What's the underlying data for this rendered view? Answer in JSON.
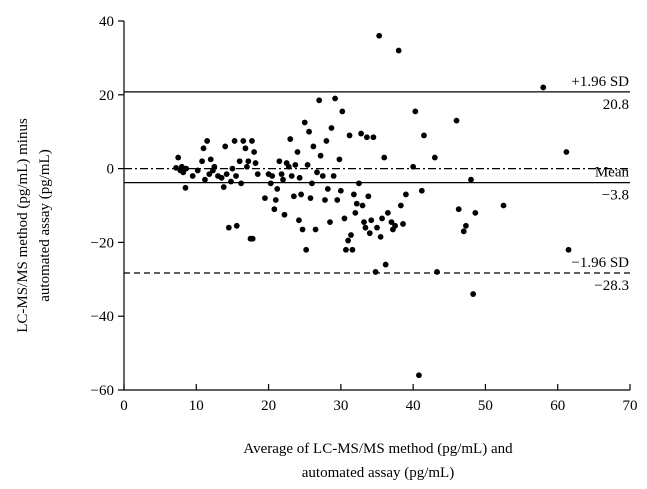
{
  "chart_data": {
    "type": "scatter",
    "xlabel_lines": [
      "Average of LC-MS/MS method (pg/mL) and",
      "automated assay (pg/mL)"
    ],
    "ylabel_lines": [
      "LC-MS/MS method (pg/mL) minus",
      "automated assay (pg/mL)"
    ],
    "xlim": [
      0,
      70
    ],
    "ylim": [
      -60,
      40
    ],
    "xticks": [
      0,
      10,
      20,
      30,
      40,
      50,
      60,
      70
    ],
    "yticks": [
      -60,
      -40,
      -20,
      0,
      20,
      40
    ],
    "grid": false,
    "reference_lines": [
      {
        "name": "upper-sd",
        "y": 20.8,
        "style": "solid",
        "label_top": "+1.96 SD",
        "label_bottom": "20.8"
      },
      {
        "name": "zero",
        "y": 0,
        "style": "dashdot"
      },
      {
        "name": "mean",
        "y": -3.8,
        "style": "solid",
        "label_top": "Mean",
        "label_bottom": "−3.8"
      },
      {
        "name": "lower-sd",
        "y": -28.3,
        "style": "dashed",
        "label_top": "−1.96 SD",
        "label_bottom": "−28.3"
      }
    ],
    "points": [
      [
        7.2,
        0.2
      ],
      [
        7.5,
        3.0
      ],
      [
        7.8,
        -0.5
      ],
      [
        8.0,
        0.5
      ],
      [
        8.2,
        -1.0
      ],
      [
        8.5,
        -5.2
      ],
      [
        8.6,
        0.0
      ],
      [
        9.5,
        -2.0
      ],
      [
        10.2,
        -0.5
      ],
      [
        10.8,
        2.0
      ],
      [
        11.0,
        5.5
      ],
      [
        11.2,
        -3.0
      ],
      [
        11.5,
        7.5
      ],
      [
        11.8,
        -1.5
      ],
      [
        12.0,
        2.5
      ],
      [
        12.3,
        -0.5
      ],
      [
        12.5,
        0.5
      ],
      [
        13.0,
        -2.0
      ],
      [
        13.5,
        -2.5
      ],
      [
        13.8,
        -5.0
      ],
      [
        14.0,
        6.0
      ],
      [
        14.2,
        -1.5
      ],
      [
        14.5,
        -16.0
      ],
      [
        14.8,
        -3.5
      ],
      [
        15.0,
        0.0
      ],
      [
        15.3,
        7.5
      ],
      [
        15.5,
        -2.0
      ],
      [
        15.6,
        -15.5
      ],
      [
        16.0,
        2.0
      ],
      [
        16.2,
        -4.0
      ],
      [
        16.5,
        7.5
      ],
      [
        16.8,
        5.5
      ],
      [
        17.0,
        0.5
      ],
      [
        17.2,
        2.0
      ],
      [
        17.5,
        -19.0
      ],
      [
        17.7,
        7.5
      ],
      [
        17.8,
        -19.0
      ],
      [
        18.0,
        4.5
      ],
      [
        18.2,
        1.5
      ],
      [
        18.5,
        -1.5
      ],
      [
        19.5,
        -8.0
      ],
      [
        20.0,
        -1.5
      ],
      [
        20.3,
        -4.0
      ],
      [
        20.5,
        -2.0
      ],
      [
        20.8,
        -11.0
      ],
      [
        21.0,
        -8.5
      ],
      [
        21.2,
        -5.5
      ],
      [
        21.5,
        2.0
      ],
      [
        21.8,
        -1.5
      ],
      [
        22.0,
        -3.0
      ],
      [
        22.2,
        -12.5
      ],
      [
        22.5,
        1.5
      ],
      [
        22.8,
        0.5
      ],
      [
        23.0,
        8.0
      ],
      [
        23.2,
        -2.0
      ],
      [
        23.5,
        -7.5
      ],
      [
        23.7,
        1.0
      ],
      [
        24.0,
        4.5
      ],
      [
        24.2,
        -14.0
      ],
      [
        24.3,
        -2.5
      ],
      [
        24.5,
        -7.0
      ],
      [
        24.7,
        -16.5
      ],
      [
        25.0,
        12.5
      ],
      [
        25.2,
        -22.0
      ],
      [
        25.4,
        1.0
      ],
      [
        25.6,
        10.0
      ],
      [
        25.8,
        -8.0
      ],
      [
        26.0,
        -4.0
      ],
      [
        26.2,
        6.0
      ],
      [
        26.5,
        -16.5
      ],
      [
        26.7,
        -1.0
      ],
      [
        27.0,
        18.5
      ],
      [
        27.2,
        3.5
      ],
      [
        27.5,
        -2.0
      ],
      [
        27.8,
        -8.5
      ],
      [
        28.0,
        7.5
      ],
      [
        28.2,
        -5.5
      ],
      [
        28.5,
        -14.5
      ],
      [
        28.7,
        11.0
      ],
      [
        29.0,
        -2.0
      ],
      [
        29.2,
        19.0
      ],
      [
        29.5,
        -8.5
      ],
      [
        29.8,
        2.5
      ],
      [
        30.0,
        -6.0
      ],
      [
        30.2,
        15.5
      ],
      [
        30.5,
        -13.5
      ],
      [
        30.7,
        -22.0
      ],
      [
        31.0,
        -19.5
      ],
      [
        31.2,
        9.0
      ],
      [
        31.4,
        -18.0
      ],
      [
        31.6,
        -22.0
      ],
      [
        31.8,
        -7.0
      ],
      [
        32.0,
        -12.0
      ],
      [
        32.2,
        -9.5
      ],
      [
        32.5,
        -4.0
      ],
      [
        32.8,
        9.5
      ],
      [
        33.0,
        -10.0
      ],
      [
        33.2,
        -14.5
      ],
      [
        33.4,
        -16.0
      ],
      [
        33.6,
        8.5
      ],
      [
        33.8,
        -7.5
      ],
      [
        34.0,
        -17.5
      ],
      [
        34.2,
        -14.0
      ],
      [
        34.5,
        8.5
      ],
      [
        34.8,
        -28.0
      ],
      [
        35.0,
        -16.0
      ],
      [
        35.3,
        36.0
      ],
      [
        35.5,
        -18.5
      ],
      [
        35.7,
        -13.5
      ],
      [
        36.0,
        3.0
      ],
      [
        36.2,
        -26.0
      ],
      [
        36.5,
        -12.0
      ],
      [
        37.0,
        -14.5
      ],
      [
        37.2,
        -16.5
      ],
      [
        37.5,
        -15.5
      ],
      [
        38.0,
        32.0
      ],
      [
        38.3,
        -10.0
      ],
      [
        38.6,
        -15.0
      ],
      [
        39.0,
        -7.0
      ],
      [
        40.0,
        0.5
      ],
      [
        40.3,
        15.5
      ],
      [
        40.8,
        -56.0
      ],
      [
        41.2,
        -6.0
      ],
      [
        41.5,
        9.0
      ],
      [
        43.0,
        3.0
      ],
      [
        43.3,
        -28.0
      ],
      [
        46.0,
        13.0
      ],
      [
        46.3,
        -11.0
      ],
      [
        47.0,
        -17.0
      ],
      [
        47.3,
        -15.5
      ],
      [
        48.0,
        -3.0
      ],
      [
        48.3,
        -34.0
      ],
      [
        48.6,
        -12.0
      ],
      [
        52.5,
        -10.0
      ],
      [
        58.0,
        22.0
      ],
      [
        61.2,
        4.5
      ],
      [
        61.5,
        -22.0
      ]
    ]
  }
}
